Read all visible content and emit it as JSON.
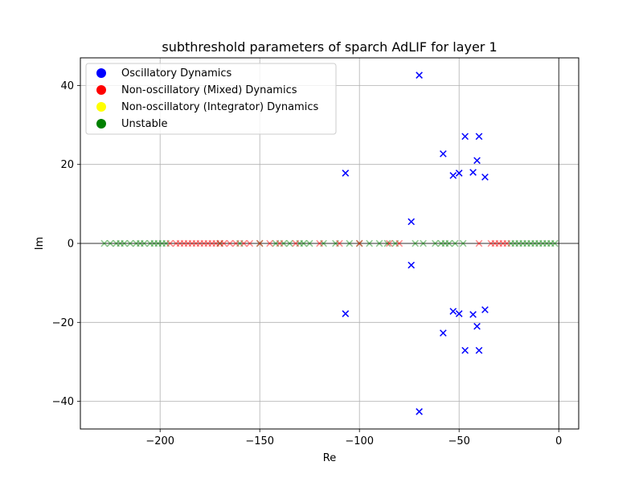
{
  "chart_data": {
    "type": "scatter",
    "title": "subthreshold parameters of sparch AdLIF for layer 1",
    "xlabel": "Re",
    "ylabel": "Im",
    "xlim": [
      -240,
      10
    ],
    "ylim": [
      -47,
      47
    ],
    "xticks": [
      -200,
      -150,
      -100,
      -50,
      0
    ],
    "yticks": [
      -40,
      -20,
      0,
      20,
      40
    ],
    "grid": true,
    "legend_position": "upper-left",
    "legend": [
      {
        "name": "Oscillatory Dynamics",
        "color": "#0000ff"
      },
      {
        "name": "Non-oscillatory (Mixed) Dynamics",
        "color": "#ff0000"
      },
      {
        "name": "Non-oscillatory (Integrator) Dynamics",
        "color": "#ffff00"
      },
      {
        "name": "Unstable",
        "color": "#008000"
      }
    ],
    "series": [
      {
        "name": "Oscillatory Dynamics",
        "color": "#0000ff",
        "marker": "x",
        "x": [
          -70,
          -70,
          -107,
          -107,
          -47,
          -47,
          -40,
          -40,
          -58,
          -58,
          -41,
          -41,
          -43,
          -43,
          -50,
          -50,
          -53,
          -53,
          -37,
          -37,
          -74,
          -74
        ],
        "y": [
          42.6,
          -42.6,
          17.8,
          -17.8,
          27.1,
          -27.1,
          27.1,
          -27.1,
          22.7,
          -22.7,
          21,
          -21,
          18,
          -18,
          17.8,
          -17.8,
          17.2,
          -17.2,
          16.8,
          -16.8,
          5.5,
          -5.5
        ]
      },
      {
        "name": "Non-oscillatory (Mixed) Dynamics",
        "color": "#ff0000",
        "marker": "x",
        "x": [
          -195,
          -192,
          -190,
          -188,
          -186,
          -184,
          -182,
          -180,
          -178,
          -176,
          -174,
          -172,
          -170,
          -168,
          -165,
          -162,
          -158,
          -155,
          -150,
          -145,
          -140,
          -132,
          -120,
          -110,
          -100,
          -85,
          -80,
          -40,
          -34,
          -32,
          -30,
          -28,
          -26
        ],
        "y": [
          0,
          0,
          0,
          0,
          0,
          0,
          0,
          0,
          0,
          0,
          0,
          0,
          0,
          0,
          0,
          0,
          0,
          0,
          0,
          0,
          0,
          0,
          0,
          0,
          0,
          0,
          0,
          0,
          0,
          0,
          0,
          0,
          0
        ]
      },
      {
        "name": "Unstable",
        "color": "#008000",
        "marker": "x",
        "x": [
          -228,
          -225,
          -222,
          -220,
          -218,
          -215,
          -212,
          -210,
          -208,
          -205,
          -203,
          -201,
          -199,
          -197,
          -170,
          -160,
          -150,
          -142,
          -138,
          -135,
          -130,
          -128,
          -125,
          -118,
          -112,
          -105,
          -100,
          -95,
          -90,
          -86,
          -82,
          -72,
          -68,
          -62,
          -59,
          -57,
          -55,
          -52,
          -48,
          -24,
          -22,
          -20,
          -18,
          -16,
          -14,
          -12,
          -10,
          -8,
          -6,
          -4,
          -2
        ],
        "y": [
          0,
          0,
          0,
          0,
          0,
          0,
          0,
          0,
          0,
          0,
          0,
          0,
          0,
          0,
          0,
          0,
          0,
          0,
          0,
          0,
          0,
          0,
          0,
          0,
          0,
          0,
          0,
          0,
          0,
          0,
          0,
          0,
          0,
          0,
          0,
          0,
          0,
          0,
          0,
          0,
          0,
          0,
          0,
          0,
          0,
          0,
          0,
          0,
          0,
          0,
          0
        ]
      }
    ]
  }
}
